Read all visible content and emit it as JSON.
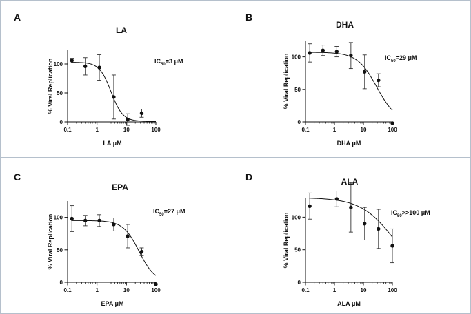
{
  "chart_data": [
    {
      "type": "scatter",
      "panel": "A",
      "title": "LA",
      "ic50_prefix": "IC",
      "ic50_sub": "50",
      "ic50_suffix": "=3 μM",
      "xlabel": "LA μM",
      "ylabel": "% Viral Replication",
      "xscale": "log",
      "xlim": [
        0.1,
        100
      ],
      "ylim": [
        0,
        125
      ],
      "xticks": [
        0.1,
        1,
        10,
        100
      ],
      "xtick_labels": [
        "0.1",
        "1",
        "10",
        "100"
      ],
      "yticks": [
        0,
        50,
        100
      ],
      "ytick_labels": [
        "0",
        "50",
        "100"
      ],
      "x": [
        0.14,
        0.4,
        1.2,
        3.7,
        11,
        33
      ],
      "y": [
        106,
        96,
        94,
        43,
        4,
        15
      ],
      "error": [
        4,
        15,
        22,
        38,
        10,
        7
      ],
      "fit": {
        "top": 103,
        "bottom": 1,
        "ec50": 3,
        "hill": 2.2
      }
    },
    {
      "type": "scatter",
      "panel": "B",
      "title": "DHA",
      "ic50_prefix": "IC",
      "ic50_sub": "50",
      "ic50_suffix": "=29 μM",
      "xlabel": "DHA μM",
      "ylabel": "% Viral Replication",
      "xscale": "log",
      "xlim": [
        0.1,
        100
      ],
      "ylim": [
        0,
        125
      ],
      "xticks": [
        0.1,
        1,
        10,
        100
      ],
      "xtick_labels": [
        "0.1",
        "1",
        "10",
        "100"
      ],
      "yticks": [
        0,
        50,
        100
      ],
      "ytick_labels": [
        "0",
        "50",
        "100"
      ],
      "x": [
        0.14,
        0.4,
        1.2,
        3.7,
        11,
        33,
        100
      ],
      "y": [
        106,
        110,
        108,
        102,
        77,
        64,
        -2
      ],
      "error": [
        14,
        8,
        8,
        20,
        26,
        10,
        0
      ],
      "fit": {
        "top": 107,
        "bottom": 0,
        "ec50": 29,
        "hill": 1.3
      }
    },
    {
      "type": "scatter",
      "panel": "C",
      "title": "EPA",
      "ic50_prefix": "IC",
      "ic50_sub": "50",
      "ic50_suffix": "=27 μM",
      "xlabel": "EPA μM",
      "ylabel": "% Viral Replication",
      "xscale": "log",
      "xlim": [
        0.1,
        100
      ],
      "ylim": [
        0,
        125
      ],
      "xticks": [
        0.1,
        1,
        10,
        100
      ],
      "xtick_labels": [
        "0.1",
        "1",
        "10",
        "100"
      ],
      "yticks": [
        0,
        50,
        100
      ],
      "ytick_labels": [
        "0",
        "50",
        "100"
      ],
      "x": [
        0.14,
        0.4,
        1.2,
        3.7,
        11,
        33,
        100
      ],
      "y": [
        98,
        95,
        95,
        89,
        71,
        47,
        -3
      ],
      "error": [
        20,
        8,
        9,
        10,
        18,
        6,
        0
      ],
      "fit": {
        "top": 95,
        "bottom": 0,
        "ec50": 27,
        "hill": 1.6
      }
    },
    {
      "type": "scatter",
      "panel": "D",
      "title": "ALA",
      "ic50_prefix": "IC",
      "ic50_sub": "50",
      "ic50_suffix": ">>100 μM",
      "xlabel": "ALA μM",
      "ylabel": "% Viral Replication",
      "xscale": "log",
      "xlim": [
        0.1,
        100
      ],
      "ylim": [
        0,
        130
      ],
      "xticks": [
        0.1,
        1,
        10,
        100
      ],
      "xtick_labels": [
        "0.1",
        "1",
        "10",
        "100"
      ],
      "yticks": [
        0,
        50,
        100
      ],
      "ytick_labels": [
        "0",
        "50",
        "100"
      ],
      "x": [
        0.14,
        1.2,
        3.7,
        11,
        33,
        100
      ],
      "y": [
        117,
        128,
        115,
        90,
        82,
        56
      ],
      "error": [
        20,
        12,
        38,
        25,
        30,
        26
      ],
      "fit": {
        "top": 130,
        "bottom": 0,
        "ec50": 120,
        "hill": 0.75
      }
    }
  ]
}
